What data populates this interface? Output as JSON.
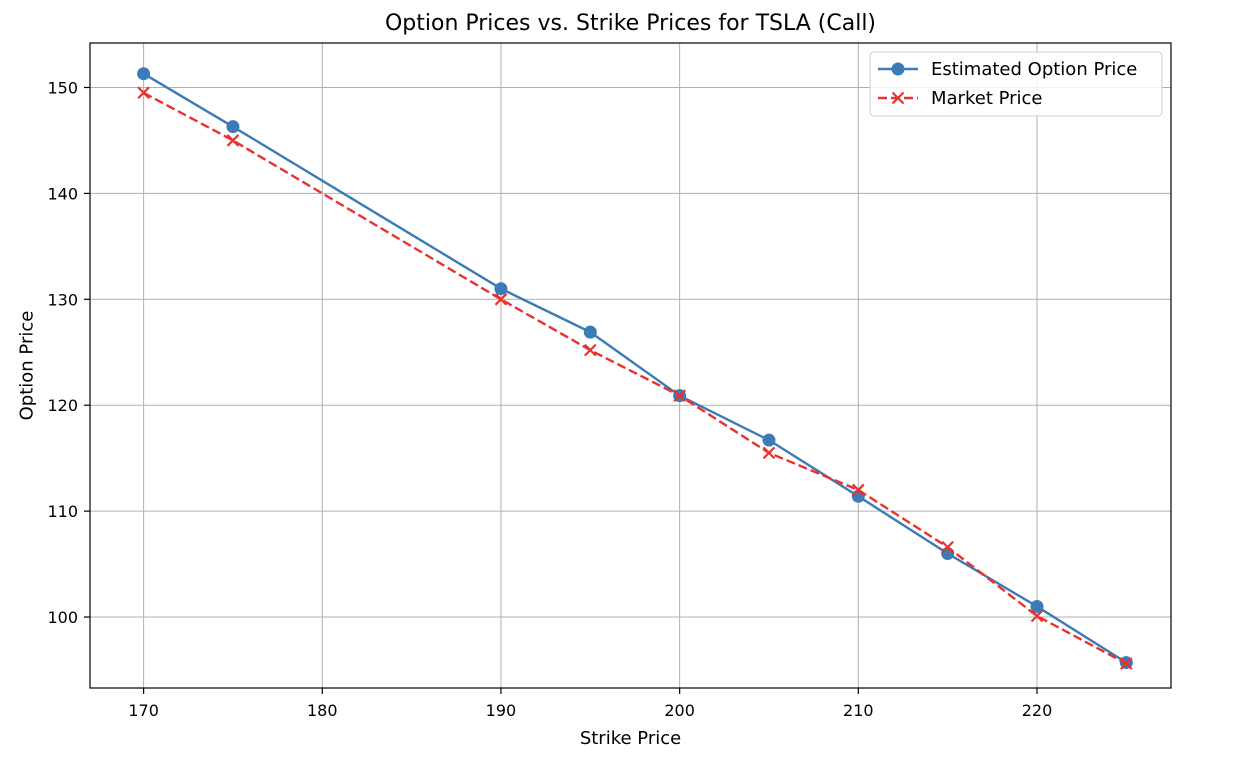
{
  "chart_data": {
    "type": "line",
    "title": "Option Prices vs. Strike Prices for TSLA (Call)",
    "xlabel": "Strike Price",
    "ylabel": "Option Price",
    "xlim": [
      167,
      227.5
    ],
    "ylim": [
      93.3,
      154.2
    ],
    "xticks": [
      170,
      180,
      190,
      200,
      210,
      220
    ],
    "yticks": [
      100,
      110,
      120,
      130,
      140,
      150
    ],
    "grid": true,
    "legend_position": "top-right",
    "x": [
      170,
      175,
      190,
      195,
      200,
      205,
      210,
      215,
      220,
      225
    ],
    "series": [
      {
        "name": "Estimated Option Price",
        "values": [
          151.3,
          146.3,
          131.0,
          126.9,
          120.9,
          116.7,
          111.4,
          106.0,
          101.0,
          95.7
        ],
        "color": "#3d7ab8",
        "marker": "circle",
        "line_style": "solid"
      },
      {
        "name": "Market Price",
        "values": [
          149.5,
          145.0,
          130.0,
          125.2,
          120.9,
          115.5,
          112.0,
          106.6,
          100.1,
          95.6
        ],
        "color": "#e8322e",
        "marker": "x",
        "line_style": "dashed"
      }
    ]
  }
}
